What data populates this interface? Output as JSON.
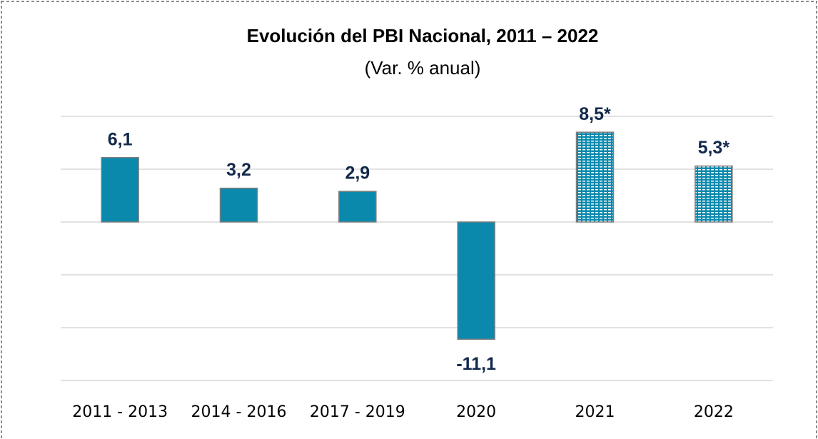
{
  "chart_data": {
    "type": "bar",
    "title": "Evolución del PBI Nacional, 2011 – 2022",
    "subtitle": "(Var. % anual)",
    "categories": [
      "2011 - 2013",
      "2014 - 2016",
      "2017 - 2019",
      "2020",
      "2021",
      "2022"
    ],
    "values": [
      6.1,
      3.2,
      2.9,
      -11.1,
      8.5,
      5.3
    ],
    "value_labels": [
      "6,1",
      "3,2",
      "2,9",
      "-11,1",
      "8,5*",
      "5,3*"
    ],
    "patterned": [
      false,
      false,
      false,
      false,
      true,
      true
    ],
    "color": "#0a89ad",
    "ylim": [
      -15,
      10
    ],
    "yticks": [
      -15,
      -10,
      -5,
      0,
      5,
      10
    ],
    "grid": true
  }
}
